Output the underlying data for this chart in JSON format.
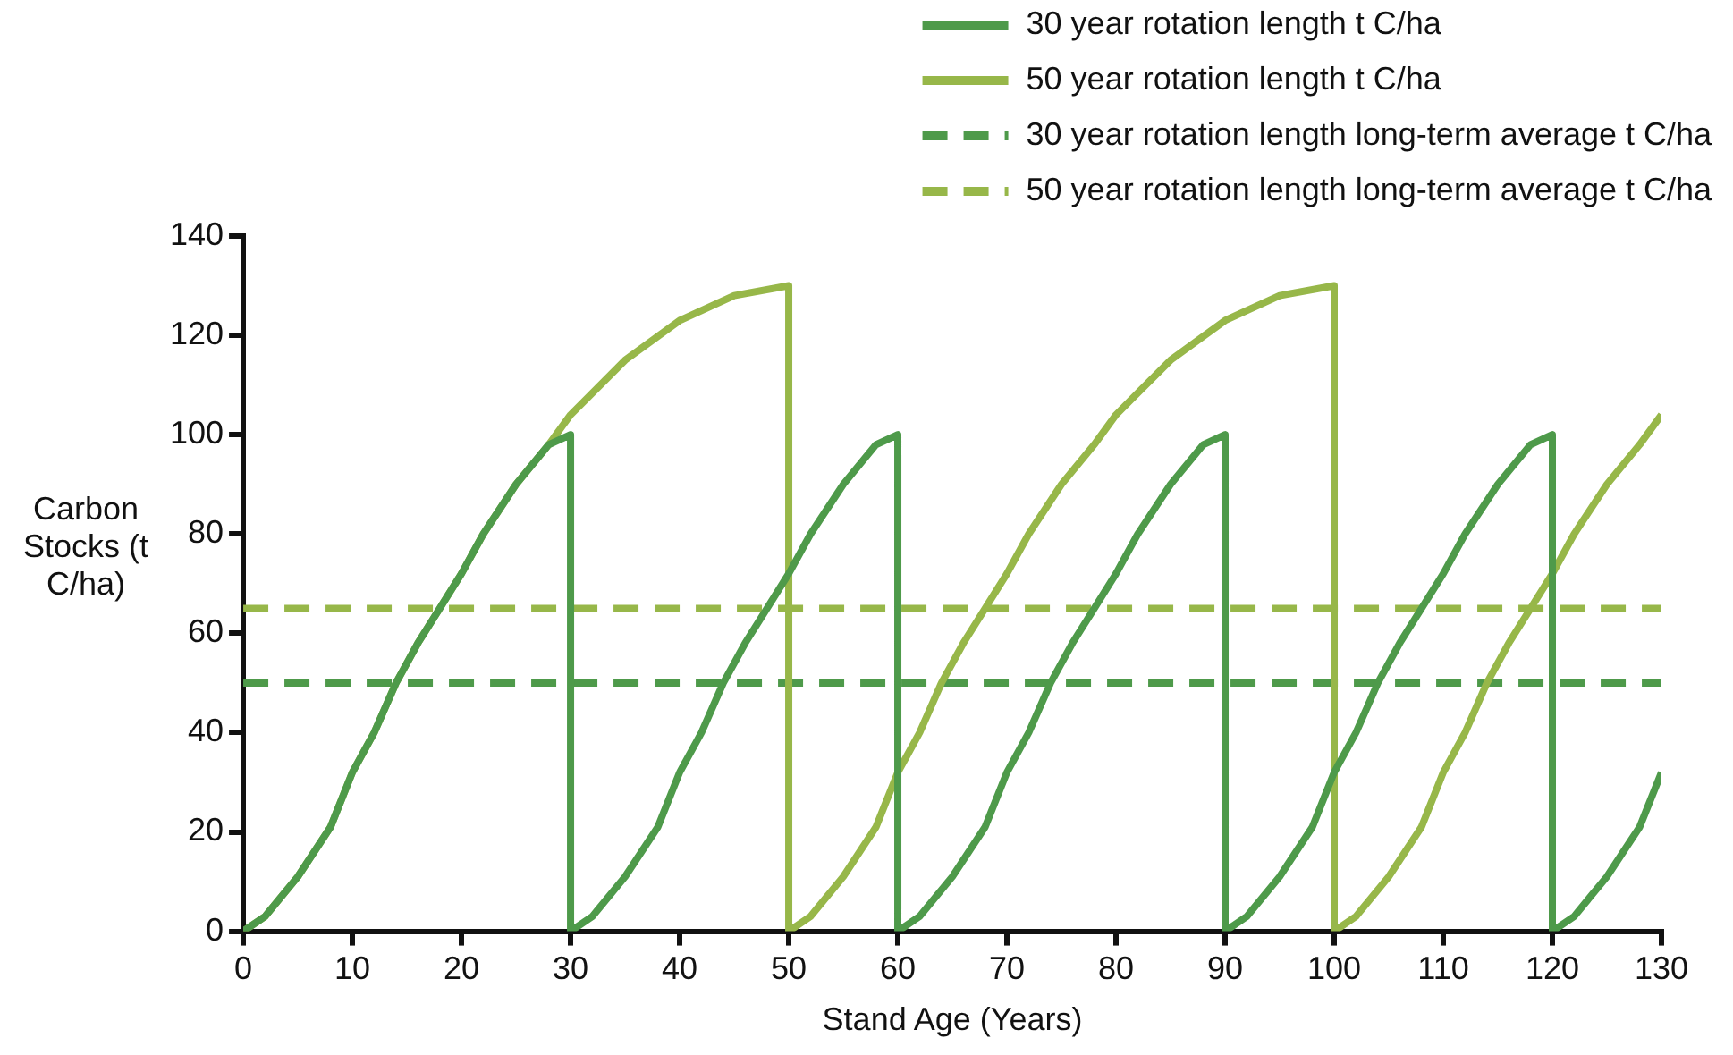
{
  "chart_data": {
    "type": "line",
    "xlabel": "Stand Age (Years)",
    "ylabel": "Carbon Stocks (t C/ha)",
    "xlim": [
      0,
      130
    ],
    "xticks": [
      0,
      10,
      20,
      30,
      40,
      50,
      60,
      70,
      80,
      90,
      100,
      110,
      120,
      130
    ],
    "ylim": [
      0,
      140
    ],
    "yticks": [
      0,
      20,
      40,
      60,
      80,
      100,
      120,
      140
    ],
    "grid": false,
    "legend": "top right",
    "marker": "none",
    "line_style": "solid",
    "series": [
      {
        "name": "30 year rotation length t C/ha",
        "color": "#4e9a4a",
        "x": [
          0,
          2,
          5,
          8,
          10,
          12,
          14,
          16,
          18,
          20,
          22,
          25,
          28,
          30,
          30,
          32,
          35,
          38,
          40,
          42,
          44,
          46,
          48,
          50,
          52,
          55,
          58,
          60,
          60,
          62,
          65,
          68,
          70,
          72,
          74,
          76,
          78,
          80,
          82,
          85,
          88,
          90,
          90,
          92,
          95,
          98,
          100,
          102,
          104,
          106,
          108,
          110,
          112,
          115,
          118,
          120,
          120,
          122,
          125,
          128,
          130
        ],
        "values": [
          0,
          3,
          11,
          21,
          32,
          40,
          50,
          58,
          65,
          72,
          80,
          90,
          98,
          100,
          0,
          3,
          11,
          21,
          32,
          40,
          50,
          58,
          65,
          72,
          80,
          90,
          98,
          100,
          0,
          3,
          11,
          21,
          32,
          40,
          50,
          58,
          65,
          72,
          80,
          90,
          98,
          100,
          0,
          3,
          11,
          21,
          32,
          40,
          50,
          58,
          65,
          72,
          80,
          90,
          98,
          100,
          0,
          3,
          11,
          21,
          32
        ]
      },
      {
        "name": "50 year rotation length t C/ha",
        "color": "#97b749",
        "x": [
          0,
          2,
          5,
          8,
          10,
          12,
          14,
          16,
          18,
          20,
          22,
          25,
          28,
          30,
          35,
          40,
          45,
          50,
          50,
          52,
          55,
          58,
          60,
          62,
          64,
          66,
          68,
          70,
          72,
          75,
          78,
          80,
          85,
          90,
          95,
          100,
          100,
          102,
          105,
          108,
          110,
          112,
          114,
          116,
          118,
          120,
          122,
          125,
          128,
          130
        ],
        "values": [
          0,
          3,
          11,
          21,
          32,
          40,
          50,
          58,
          65,
          72,
          80,
          90,
          98,
          104,
          115,
          123,
          128,
          130,
          0,
          3,
          11,
          21,
          32,
          40,
          50,
          58,
          65,
          72,
          80,
          90,
          98,
          104,
          115,
          123,
          128,
          130,
          0,
          3,
          11,
          21,
          32,
          40,
          50,
          58,
          65,
          72,
          80,
          90,
          98,
          104
        ]
      }
    ],
    "ref_lines": [
      {
        "axis": "y",
        "value": 50,
        "label": "30 year rotation length long-term average t C/ha",
        "color": "#4e9a4a",
        "line_style": "dashed"
      },
      {
        "axis": "y",
        "value": 65,
        "label": "50 year rotation length long-term average t C/ha",
        "color": "#97b749",
        "line_style": "dashed"
      }
    ]
  }
}
